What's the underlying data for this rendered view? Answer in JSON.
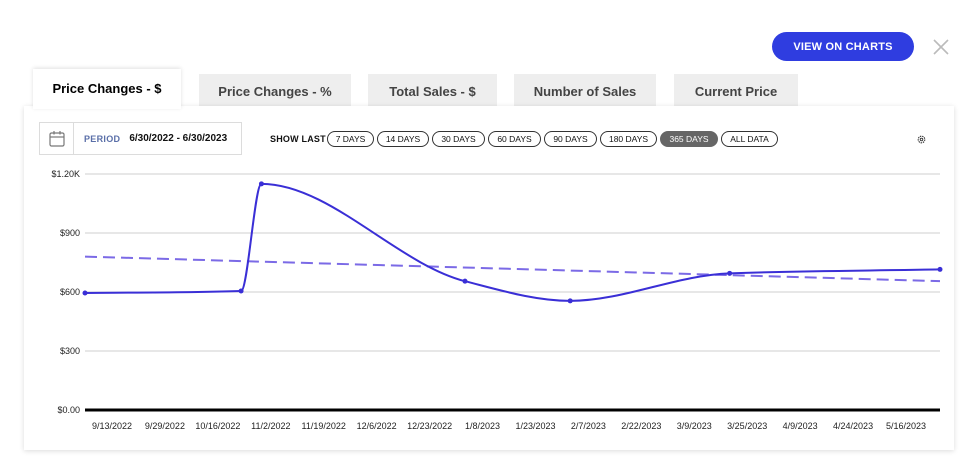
{
  "header": {
    "view_button_label": "VIEW ON CHARTS",
    "close_icon": "close-icon"
  },
  "tabs": [
    {
      "label": "Price Changes - $",
      "active": true
    },
    {
      "label": "Price Changes - %",
      "active": false
    },
    {
      "label": "Total Sales - $",
      "active": false
    },
    {
      "label": "Number of Sales",
      "active": false
    },
    {
      "label": "Current Price",
      "active": false
    }
  ],
  "toolbar": {
    "calendar_icon": "calendar-icon",
    "period_label": "PERIOD",
    "period_value": "6/30/2022 - 6/30/2023",
    "show_last_label": "SHOW LAST",
    "ranges": [
      {
        "label": "7 DAYS",
        "active": false
      },
      {
        "label": "14 DAYS",
        "active": false
      },
      {
        "label": "30 DAYS",
        "active": false
      },
      {
        "label": "60 DAYS",
        "active": false
      },
      {
        "label": "90 DAYS",
        "active": false
      },
      {
        "label": "180 DAYS",
        "active": false
      },
      {
        "label": "365 DAYS",
        "active": true
      },
      {
        "label": "ALL DATA",
        "active": false
      }
    ],
    "settings_icon": "gear-icon"
  },
  "colors": {
    "accent": "#2f3de0",
    "line": "#3a2fd6",
    "trend": "#7b6ae6",
    "active_pill": "#666666"
  },
  "chart_data": {
    "type": "line",
    "y_ticks": [
      "$1.20K",
      "$900",
      "$600",
      "$300",
      "$0.00"
    ],
    "y_tick_values": [
      1200,
      900,
      600,
      300,
      0
    ],
    "ylim": [
      0,
      1200
    ],
    "x_ticks": [
      "9/13/2022",
      "9/29/2022",
      "10/16/2022",
      "11/2/2022",
      "11/19/2022",
      "12/6/2022",
      "12/23/2022",
      "1/8/2023",
      "1/23/2023",
      "2/7/2023",
      "2/22/2023",
      "3/9/2023",
      "3/25/2023",
      "4/9/2023",
      "4/24/2023",
      "5/16/2023"
    ],
    "xlim": [
      "2022-09-13",
      "2023-05-23"
    ],
    "grid": true,
    "series": [
      {
        "style": "solid",
        "points": [
          {
            "x": "2022-09-13",
            "y": 595
          },
          {
            "x": "2022-10-29",
            "y": 605
          },
          {
            "x": "2022-11-04",
            "y": 1150
          },
          {
            "x": "2023-01-03",
            "y": 655
          },
          {
            "x": "2023-02-03",
            "y": 555
          },
          {
            "x": "2023-03-22",
            "y": 695
          },
          {
            "x": "2023-05-23",
            "y": 715
          }
        ]
      },
      {
        "style": "dashed",
        "points": [
          {
            "x": "2022-09-13",
            "y": 780
          },
          {
            "x": "2023-05-23",
            "y": 655
          }
        ]
      }
    ]
  }
}
